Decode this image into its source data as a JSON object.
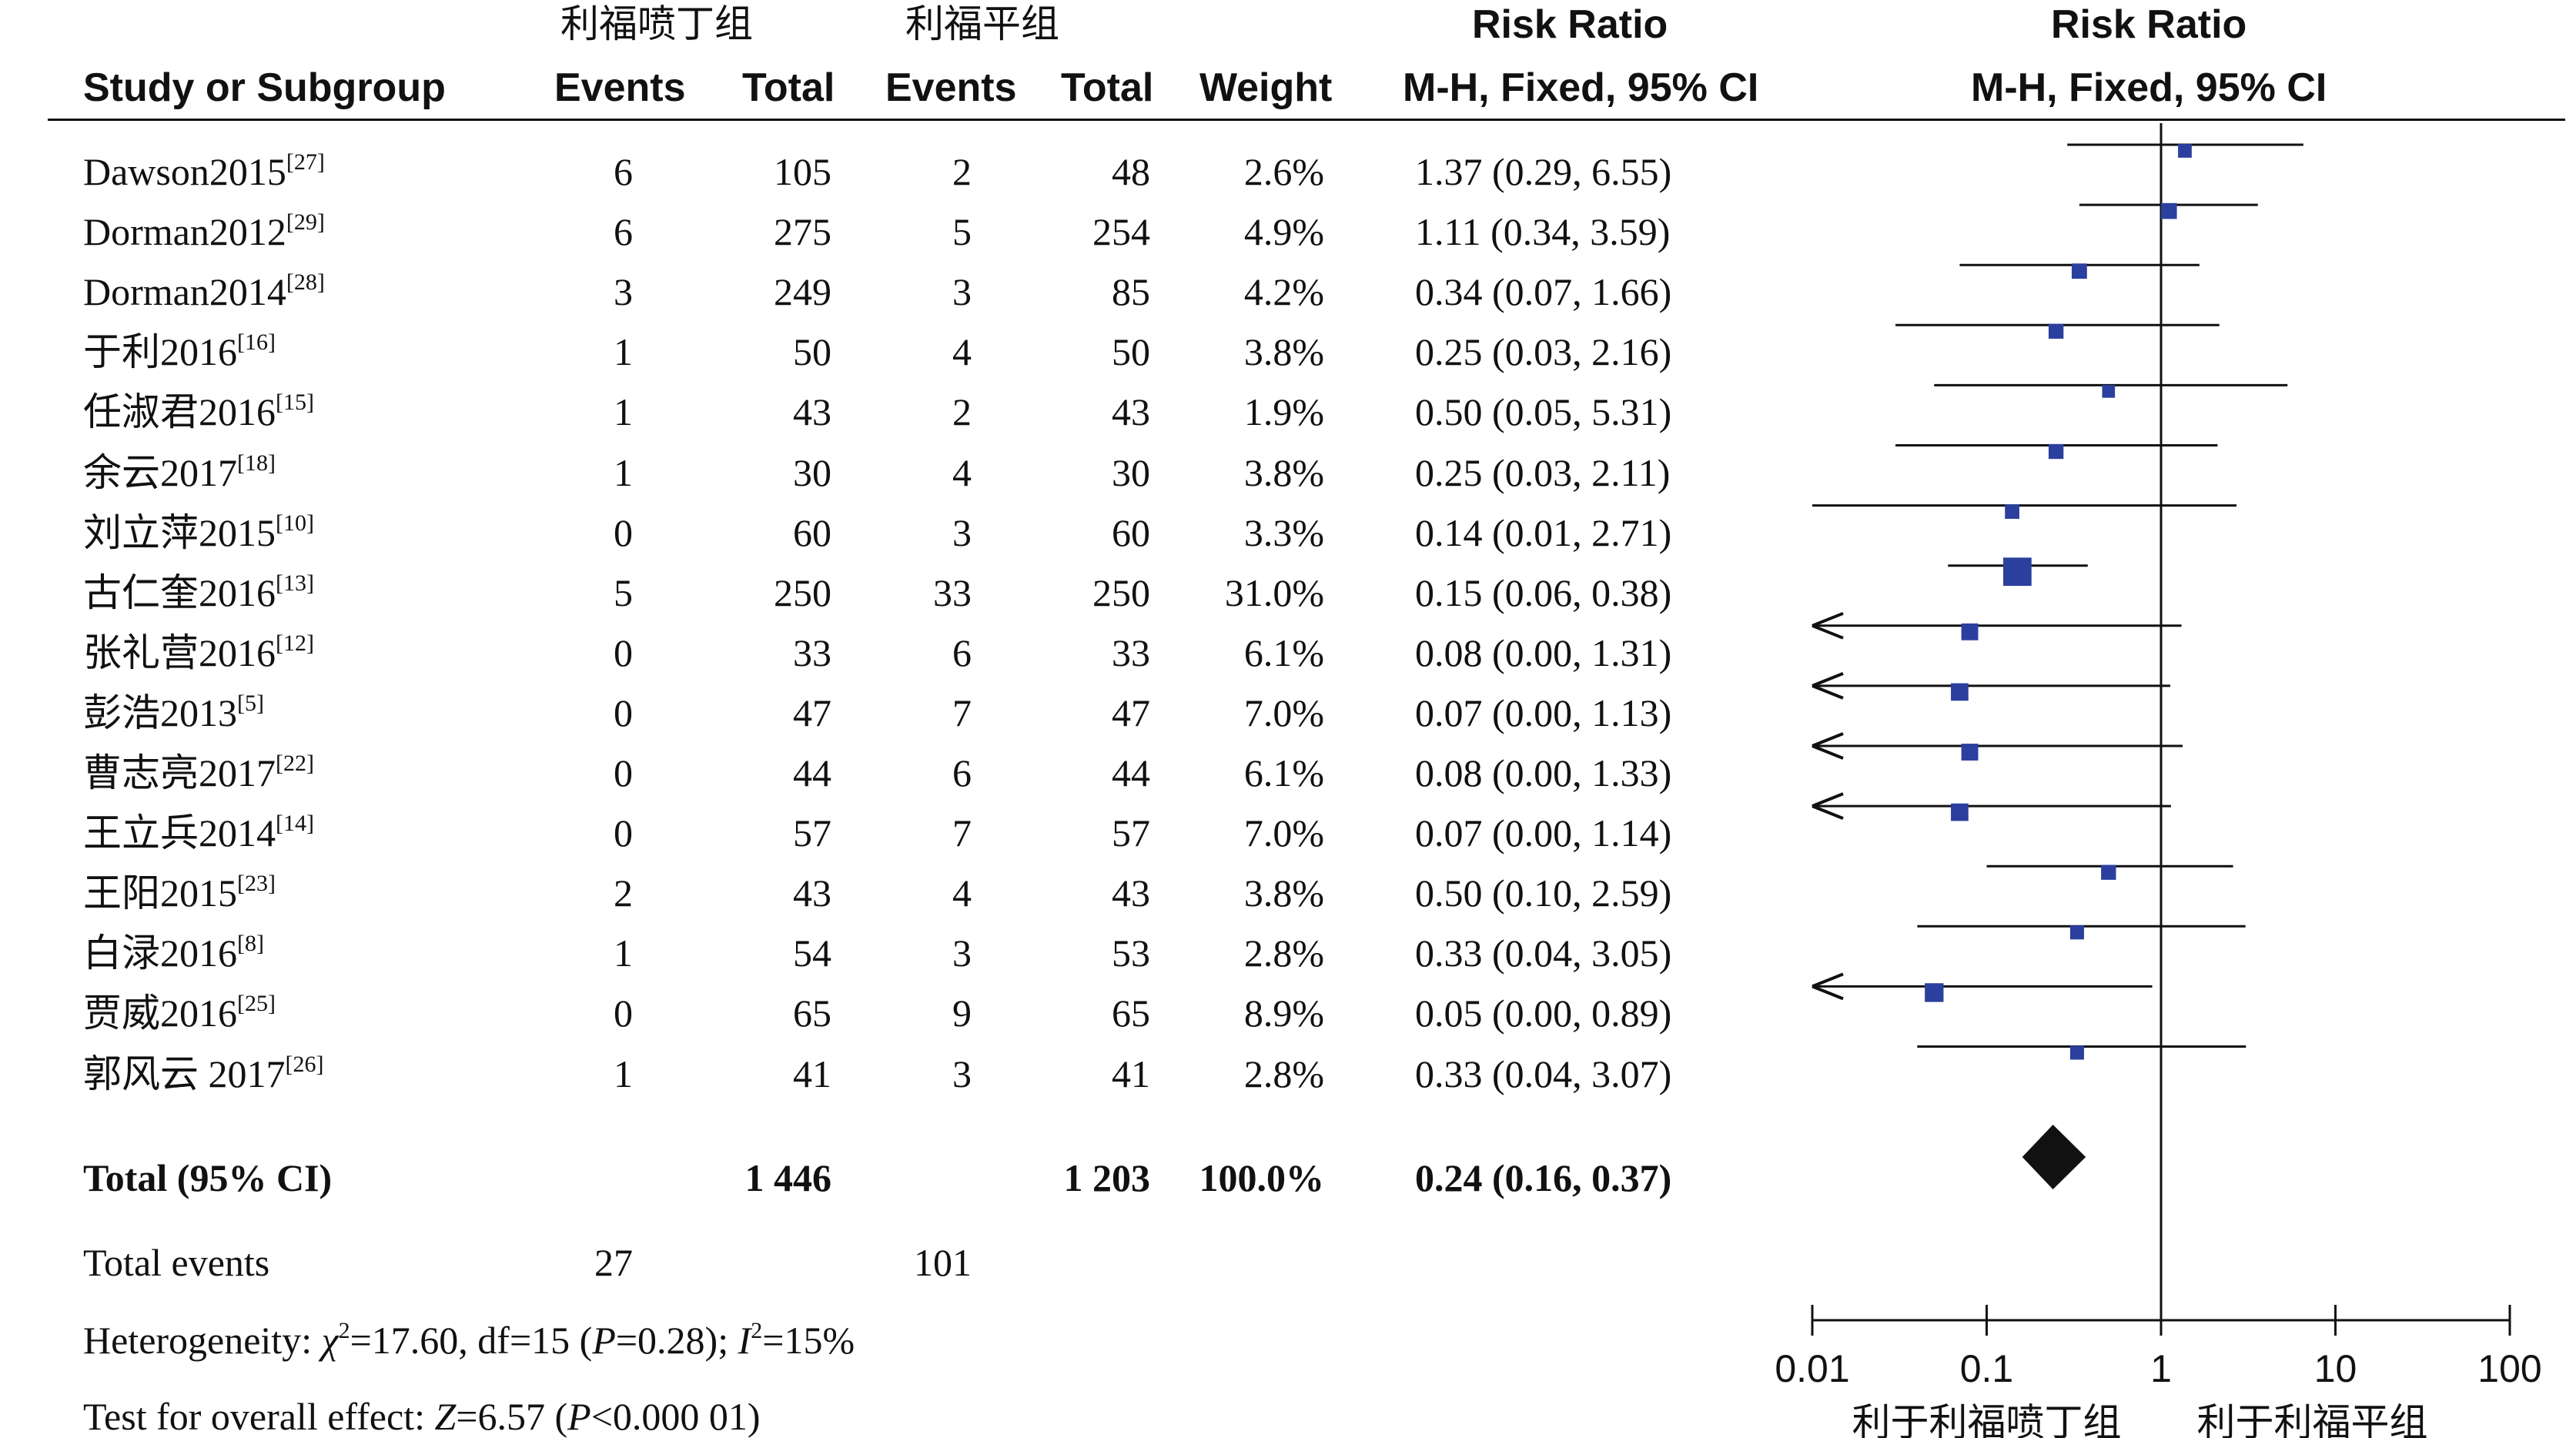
{
  "header": {
    "group1": "利福喷丁组",
    "group2": "利福平组",
    "rr_top": "Risk Ratio",
    "rr_plot_top": "Risk Ratio",
    "study": "Study or Subgroup",
    "events1": "Events",
    "total1": "Total",
    "events2": "Events",
    "total2": "Total",
    "weight": "Weight",
    "rr_method": "M-H, Fixed, 95% CI",
    "rr_plot_method": "M-H, Fixed, 95% CI"
  },
  "studies": [
    {
      "name": "Dawson2015",
      "ref": "[27]",
      "e1": "6",
      "t1": "105",
      "e2": "2",
      "t2": "48",
      "weight": "2.6%",
      "ci": "1.37 (0.29, 6.55)"
    },
    {
      "name": "Dorman2012",
      "ref": "[29]",
      "e1": "6",
      "t1": "275",
      "e2": "5",
      "t2": "254",
      "weight": "4.9%",
      "ci": "1.11 (0.34, 3.59)"
    },
    {
      "name": "Dorman2014",
      "ref": "[28]",
      "e1": "3",
      "t1": "249",
      "e2": "3",
      "t2": "85",
      "weight": "4.2%",
      "ci": "0.34 (0.07, 1.66)"
    },
    {
      "name": "于利2016",
      "ref": "[16]",
      "e1": "1",
      "t1": "50",
      "e2": "4",
      "t2": "50",
      "weight": "3.8%",
      "ci": "0.25 (0.03, 2.16)"
    },
    {
      "name": "任淑君2016",
      "ref": "[15]",
      "e1": "1",
      "t1": "43",
      "e2": "2",
      "t2": "43",
      "weight": "1.9%",
      "ci": "0.50 (0.05, 5.31)"
    },
    {
      "name": "余云2017",
      "ref": "[18]",
      "e1": "1",
      "t1": "30",
      "e2": "4",
      "t2": "30",
      "weight": "3.8%",
      "ci": "0.25 (0.03, 2.11)"
    },
    {
      "name": "刘立萍2015",
      "ref": "[10]",
      "e1": "0",
      "t1": "60",
      "e2": "3",
      "t2": "60",
      "weight": "3.3%",
      "ci": "0.14 (0.01, 2.71)"
    },
    {
      "name": "古仁奎2016",
      "ref": "[13]",
      "e1": "5",
      "t1": "250",
      "e2": "33",
      "t2": "250",
      "weight": "31.0%",
      "ci": "0.15 (0.06, 0.38)"
    },
    {
      "name": "张礼营2016",
      "ref": "[12]",
      "e1": "0",
      "t1": "33",
      "e2": "6",
      "t2": "33",
      "weight": "6.1%",
      "ci": "0.08 (0.00, 1.31)"
    },
    {
      "name": "彭浩2013",
      "ref": "[5]",
      "e1": "0",
      "t1": "47",
      "e2": "7",
      "t2": "47",
      "weight": "7.0%",
      "ci": "0.07 (0.00, 1.13)"
    },
    {
      "name": "曹志亮2017",
      "ref": "[22]",
      "e1": "0",
      "t1": "44",
      "e2": "6",
      "t2": "44",
      "weight": "6.1%",
      "ci": "0.08 (0.00, 1.33)"
    },
    {
      "name": "王立兵2014",
      "ref": "[14]",
      "e1": "0",
      "t1": "57",
      "e2": "7",
      "t2": "57",
      "weight": "7.0%",
      "ci": "0.07 (0.00, 1.14)"
    },
    {
      "name": "王阳2015",
      "ref": "[23]",
      "e1": "2",
      "t1": "43",
      "e2": "4",
      "t2": "43",
      "weight": "3.8%",
      "ci": "0.50 (0.10, 2.59)"
    },
    {
      "name": "白渌2016",
      "ref": "[8]",
      "e1": "1",
      "t1": "54",
      "e2": "3",
      "t2": "53",
      "weight": "2.8%",
      "ci": "0.33 (0.04, 3.05)"
    },
    {
      "name": "贾威2016",
      "ref": "[25]",
      "e1": "0",
      "t1": "65",
      "e2": "9",
      "t2": "65",
      "weight": "8.9%",
      "ci": "0.05 (0.00, 0.89)"
    },
    {
      "name": "郭风云 2017",
      "ref": "[26]",
      "e1": "1",
      "t1": "41",
      "e2": "3",
      "t2": "41",
      "weight": "2.8%",
      "ci": "0.33 (0.04, 3.07)"
    }
  ],
  "total": {
    "label": "Total (95% CI)",
    "t1": "1 446",
    "t2": "1 203",
    "weight": "100.0%",
    "ci": "0.24 (0.16, 0.37)"
  },
  "total_events": {
    "label": "Total events",
    "e1": "27",
    "e2": "101"
  },
  "heterogeneity": {
    "prefix": "Heterogeneity: ",
    "chi_symbol": "χ",
    "chi_rest": "=17.60, df=15 (",
    "p_symbol": "P",
    "p_rest": "=0.28); ",
    "i_symbol": "I",
    "i_rest": "=15%"
  },
  "overall_effect": {
    "prefix": "Test for overall effect: ",
    "z_symbol": "Z",
    "z_rest": "=6.57 (",
    "p_symbol": "P",
    "p_rest": "<0.000 01)"
  },
  "axis": {
    "ticks": [
      "0.01",
      "0.1",
      "1",
      "10",
      "100"
    ],
    "favours_left": "利于利福喷丁组",
    "favours_right": "利于利福平组"
  },
  "chart_data": {
    "type": "forest",
    "scale": "log",
    "xlim": [
      0.01,
      100
    ],
    "reference_line": 1,
    "x_ticks": [
      0.01,
      0.1,
      1,
      10,
      100
    ],
    "colors": {
      "square": "#2b3f9e",
      "diamond": "#111111",
      "line": "#111111"
    },
    "studies": [
      {
        "rr": 1.37,
        "lo": 0.29,
        "hi": 6.55,
        "weight": 2.6
      },
      {
        "rr": 1.11,
        "lo": 0.34,
        "hi": 3.59,
        "weight": 4.9
      },
      {
        "rr": 0.34,
        "lo": 0.07,
        "hi": 1.66,
        "weight": 4.2
      },
      {
        "rr": 0.25,
        "lo": 0.03,
        "hi": 2.16,
        "weight": 3.8
      },
      {
        "rr": 0.5,
        "lo": 0.05,
        "hi": 5.31,
        "weight": 1.9
      },
      {
        "rr": 0.25,
        "lo": 0.03,
        "hi": 2.11,
        "weight": 3.8
      },
      {
        "rr": 0.14,
        "lo": 0.01,
        "hi": 2.71,
        "weight": 3.3
      },
      {
        "rr": 0.15,
        "lo": 0.06,
        "hi": 0.38,
        "weight": 31.0
      },
      {
        "rr": 0.08,
        "lo": 0.0,
        "hi": 1.31,
        "weight": 6.1
      },
      {
        "rr": 0.07,
        "lo": 0.0,
        "hi": 1.13,
        "weight": 7.0
      },
      {
        "rr": 0.08,
        "lo": 0.0,
        "hi": 1.33,
        "weight": 6.1
      },
      {
        "rr": 0.07,
        "lo": 0.0,
        "hi": 1.14,
        "weight": 7.0
      },
      {
        "rr": 0.5,
        "lo": 0.1,
        "hi": 2.59,
        "weight": 3.8
      },
      {
        "rr": 0.33,
        "lo": 0.04,
        "hi": 3.05,
        "weight": 2.8
      },
      {
        "rr": 0.05,
        "lo": 0.0,
        "hi": 0.89,
        "weight": 8.9
      },
      {
        "rr": 0.33,
        "lo": 0.04,
        "hi": 3.07,
        "weight": 2.8
      }
    ],
    "pooled": {
      "rr": 0.24,
      "lo": 0.16,
      "hi": 0.37
    }
  }
}
